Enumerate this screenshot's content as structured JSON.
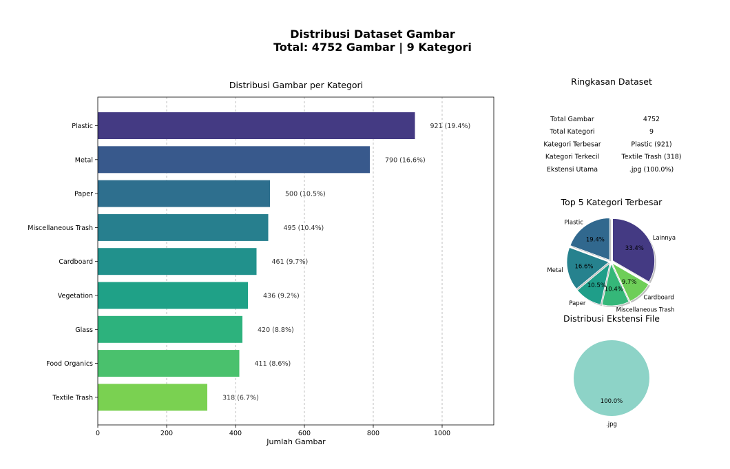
{
  "title_line1": "Distribusi Dataset Gambar",
  "title_line2": "Total: 4752 Gambar | 9 Kategori",
  "chart_data": [
    {
      "type": "bar",
      "orientation": "horizontal",
      "title": "Distribusi Gambar per Kategori",
      "xlabel": "Jumlah Gambar",
      "ylabel": "",
      "xlim": [
        0,
        1150
      ],
      "xticks": [
        0,
        200,
        400,
        600,
        800,
        1000
      ],
      "grid": "x-dashed",
      "categories": [
        "Plastic",
        "Metal",
        "Paper",
        "Miscellaneous Trash",
        "Cardboard",
        "Vegetation",
        "Glass",
        "Food Organics",
        "Textile Trash"
      ],
      "values": [
        921,
        790,
        500,
        495,
        461,
        436,
        420,
        411,
        318
      ],
      "data_labels": [
        "921 (19.4%)",
        "790 (16.6%)",
        "500 (10.5%)",
        "495 (10.4%)",
        "461 (9.7%)",
        "436 (9.2%)",
        "420 (8.8%)",
        "411 (8.6%)",
        "318 (6.7%)"
      ],
      "colors": [
        "#443a83",
        "#38598c",
        "#2e6f8e",
        "#277f8e",
        "#21918c",
        "#1fa187",
        "#2db27d",
        "#4ac16d",
        "#7ad151"
      ]
    },
    {
      "type": "table",
      "title": "Ringkasan Dataset",
      "rows": [
        [
          "Total Gambar",
          "4752"
        ],
        [
          "Total Kategori",
          "9"
        ],
        [
          "Kategori Terbesar",
          "Plastic (921)"
        ],
        [
          "Kategori Terkecil",
          "Textile Trash (318)"
        ],
        [
          "Ekstensi Utama",
          ".jpg (100.0%)"
        ]
      ]
    },
    {
      "type": "pie",
      "title": "Top 5 Kategori Terbesar",
      "start_angle_deg": 90,
      "direction": "counterclockwise",
      "exploded": true,
      "labels": [
        "Plastic",
        "Metal",
        "Paper",
        "Miscellaneous Trash",
        "Cardboard",
        "Lainnya"
      ],
      "values": [
        921,
        790,
        500,
        495,
        461,
        1585
      ],
      "percent_labels": [
        "19.4%",
        "16.6%",
        "10.5%",
        "10.4%",
        "9.7%",
        "33.4%"
      ],
      "colors": [
        "#31688e",
        "#26828e",
        "#1f9e89",
        "#35b779",
        "#6ece58",
        "#443a83"
      ]
    },
    {
      "type": "pie",
      "title": "Distribusi Ekstensi File",
      "labels": [
        ".jpg"
      ],
      "values": [
        4752
      ],
      "percent_labels": [
        "100.0%"
      ],
      "colors": [
        "#8dd3c7"
      ]
    }
  ]
}
